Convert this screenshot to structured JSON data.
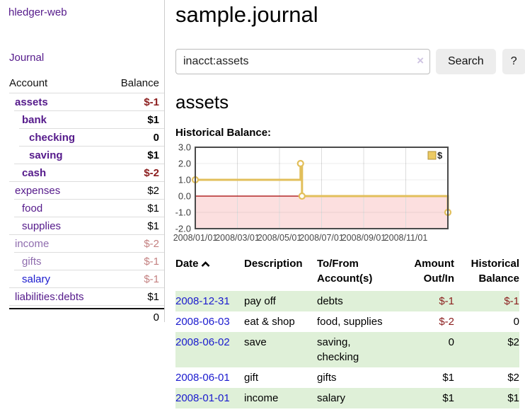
{
  "app": {
    "brand": "hledger-web",
    "nav_journal": "Journal"
  },
  "sidebar": {
    "table_headers": {
      "account": "Account",
      "balance": "Balance"
    },
    "accounts": [
      {
        "name": "assets",
        "indent": 1,
        "bold": true,
        "name_style": "purple",
        "balance": "$-1",
        "balance_style": "neg",
        "balance_bold": true
      },
      {
        "name": "bank",
        "indent": 2,
        "bold": true,
        "name_style": "purple",
        "balance": "$1",
        "balance_style": "pos",
        "balance_bold": true
      },
      {
        "name": "checking",
        "indent": 3,
        "bold": true,
        "name_style": "purple",
        "balance": "0",
        "balance_style": "pos",
        "balance_bold": true
      },
      {
        "name": "saving",
        "indent": 3,
        "bold": true,
        "name_style": "purple",
        "balance": "$1",
        "balance_style": "pos",
        "balance_bold": true
      },
      {
        "name": "cash",
        "indent": 2,
        "bold": true,
        "name_style": "purple",
        "balance": "$-2",
        "balance_style": "neg",
        "balance_bold": true
      },
      {
        "name": "expenses",
        "indent": 1,
        "bold": false,
        "name_style": "purple",
        "balance": "$2",
        "balance_style": "pos",
        "balance_bold": false
      },
      {
        "name": "food",
        "indent": 2,
        "bold": false,
        "name_style": "purple",
        "balance": "$1",
        "balance_style": "pos",
        "balance_bold": false
      },
      {
        "name": "supplies",
        "indent": 2,
        "bold": false,
        "name_style": "purple",
        "balance": "$1",
        "balance_style": "pos",
        "balance_bold": false
      },
      {
        "name": "income",
        "indent": 1,
        "bold": false,
        "name_style": "purple-dim",
        "balance": "$-2",
        "balance_style": "neg-dim",
        "balance_bold": false
      },
      {
        "name": "gifts",
        "indent": 2,
        "bold": false,
        "name_style": "purple-dim",
        "balance": "$-1",
        "balance_style": "neg-dim",
        "balance_bold": false
      },
      {
        "name": "salary",
        "indent": 2,
        "bold": false,
        "name_style": "blue",
        "balance": "$-1",
        "balance_style": "neg-dim",
        "balance_bold": false
      },
      {
        "name": "liabilities:debts",
        "indent": 1,
        "bold": false,
        "name_style": "purple",
        "balance": "$1",
        "balance_style": "pos",
        "balance_bold": false
      }
    ],
    "total": "0"
  },
  "header": {
    "title": "sample.journal"
  },
  "search": {
    "value": "inacct:assets",
    "clear_icon": "×",
    "button": "Search",
    "help_button": "?"
  },
  "account_page": {
    "heading": "assets",
    "chart_label": "Historical Balance:"
  },
  "chart_data": {
    "type": "line",
    "title": "Historical Balance",
    "step": true,
    "x_tick_labels": [
      "2008/01/01",
      "2008/03/01",
      "2008/05/01",
      "2008/07/01",
      "2008/09/01",
      "2008/11/01"
    ],
    "y_tick_labels": [
      "3.0",
      "2.0",
      "1.0",
      "0.0",
      "-1.0",
      "-2.0"
    ],
    "ylim": [
      -2,
      3
    ],
    "x_range_months": 12,
    "grid": true,
    "legend_position": "top-right",
    "series": [
      {
        "name": "$",
        "color": "#e2bf5b",
        "points": [
          {
            "date": "2008-01-01",
            "month_frac": 0,
            "value": 1
          },
          {
            "date": "2008-06-01",
            "month_frac": 5,
            "value": 2
          },
          {
            "date": "2008-06-03",
            "month_frac": 5.07,
            "value": 0
          },
          {
            "date": "2008-12-31",
            "month_frac": 12,
            "value": -1
          }
        ]
      }
    ],
    "legend": [
      {
        "label": "$",
        "color": "#ecca63"
      }
    ],
    "negative_region_color": "#fcdfdf",
    "zero_line_color": "#a40000"
  },
  "register": {
    "columns": [
      "Date",
      "Description",
      "To/From Account(s)",
      "Amount Out/In",
      "Historical Balance"
    ],
    "sort_icon": "chevron-up",
    "rows": [
      {
        "date": "2008-12-31",
        "description": "pay off",
        "accounts": "debts",
        "amount": "$-1",
        "amount_neg": true,
        "balance": "$-1",
        "balance_neg": true,
        "highlight": true
      },
      {
        "date": "2008-06-03",
        "description": "eat & shop",
        "accounts": "food, supplies",
        "amount": "$-2",
        "amount_neg": true,
        "balance": "0",
        "balance_neg": false,
        "highlight": false
      },
      {
        "date": "2008-06-02",
        "description": "save",
        "accounts": "saving, checking",
        "amount": "0",
        "amount_neg": false,
        "balance": "$2",
        "balance_neg": false,
        "highlight": true
      },
      {
        "date": "2008-06-01",
        "description": "gift",
        "accounts": "gifts",
        "amount": "$1",
        "amount_neg": false,
        "balance": "$2",
        "balance_neg": false,
        "highlight": false
      },
      {
        "date": "2008-01-01",
        "description": "income",
        "accounts": "salary",
        "amount": "$1",
        "amount_neg": false,
        "balance": "$1",
        "balance_neg": false,
        "highlight": true
      }
    ]
  },
  "colors": {
    "link_purple": "#551a8b",
    "link_purple_dim": "#8f6cae",
    "link_blue": "#1a1ace",
    "negative": "#8b1d1d",
    "negative_dim": "#c48181",
    "row_green": "#dff0d8",
    "divider": "#cccccc",
    "row_border": "#dddddd",
    "button_bg": "#ededed",
    "chart_gold": "#e2bf5b"
  }
}
